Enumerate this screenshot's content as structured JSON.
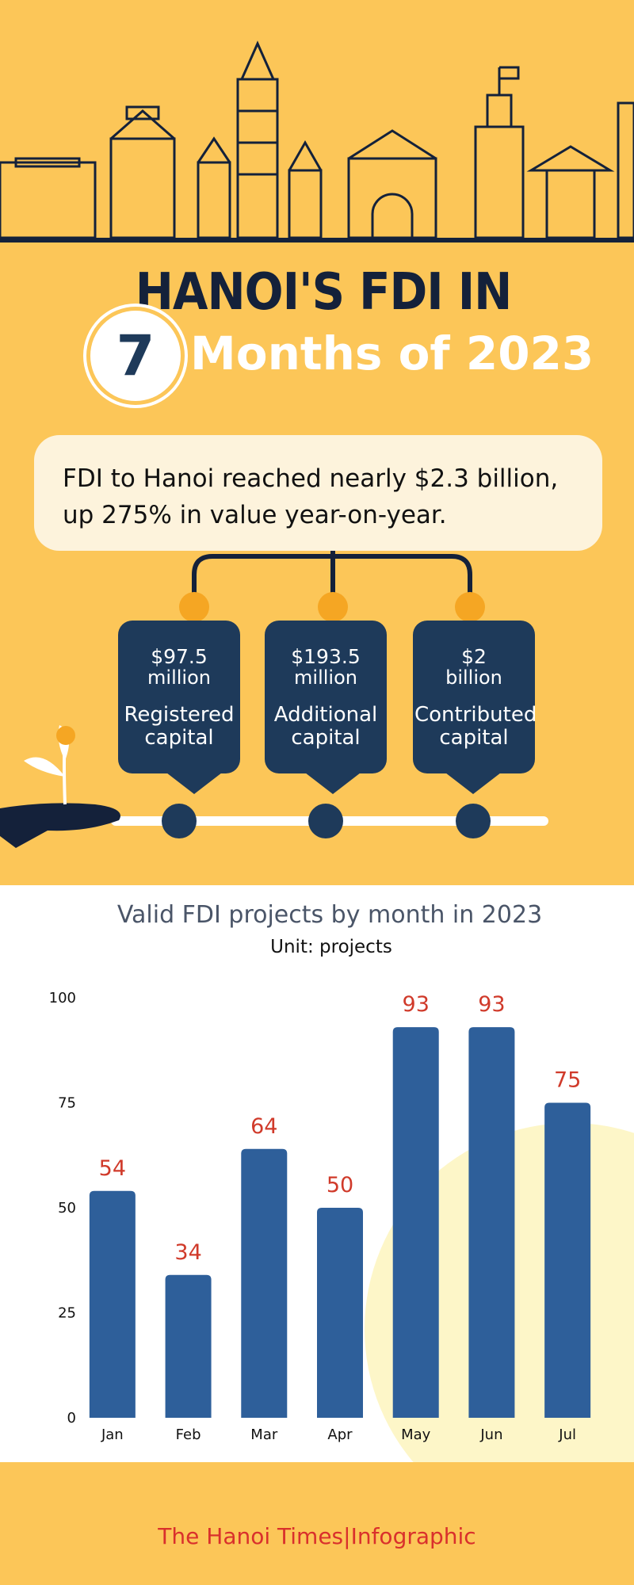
{
  "header": {
    "title": "HANOI'S FDI IN",
    "number": "7",
    "subtitle": "Months of 2023"
  },
  "summary": "FDI to Hanoi reached nearly $2.3 billion, up 275% in value year-on-year.",
  "cards": [
    {
      "amount": "$97.5",
      "unit": "million",
      "label": "Registered capital"
    },
    {
      "amount": "$193.5",
      "unit": "million",
      "label": "Additional capital"
    },
    {
      "amount": "$2",
      "unit": "billion",
      "label": "Contributed capital"
    }
  ],
  "chart_data": {
    "type": "bar",
    "title": "Valid FDI projects by month in 2023",
    "subtitle": "Unit: projects",
    "categories": [
      "Jan",
      "Feb",
      "Mar",
      "Apr",
      "May",
      "Jun",
      "Jul"
    ],
    "values": [
      54,
      34,
      64,
      50,
      93,
      93,
      75
    ],
    "color": "#2e5f9a",
    "ylim": [
      0,
      100
    ],
    "yticks": [
      0,
      25,
      50,
      75,
      100
    ]
  },
  "footer": "The Hanoi Times|Infographic"
}
